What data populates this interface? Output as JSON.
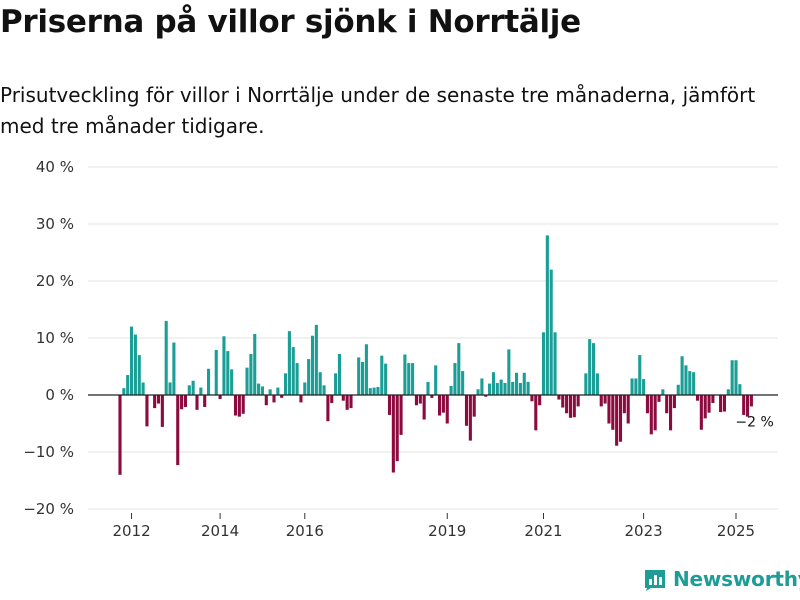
{
  "title": "Priserna på villor sjönk i Norrtälje",
  "subtitle": "Prisutveckling för villor i Norrtälje under de senaste tre månaderna, jämfört med tre månader tidigare.",
  "brand": {
    "name": "Newsworthy",
    "icon": "bar-chart-logo-icon",
    "color": "#1f9c95"
  },
  "chart_data": {
    "type": "bar",
    "title": "Priserna på villor sjönk i Norrtälje",
    "xlabel": "",
    "ylabel": "",
    "ylim": [
      -20,
      40
    ],
    "y_ticks": [
      {
        "value": 40,
        "label": "40 %"
      },
      {
        "value": 30,
        "label": "30 %"
      },
      {
        "value": 20,
        "label": "20 %"
      },
      {
        "value": 10,
        "label": "10 %"
      },
      {
        "value": 0,
        "label": "0 %"
      },
      {
        "value": -10,
        "label": "−10 %"
      },
      {
        "value": -20,
        "label": "−20 %"
      }
    ],
    "x_ticks": [
      {
        "index": 3,
        "label": "2012"
      },
      {
        "index": 26,
        "label": "2014"
      },
      {
        "index": 48,
        "label": "2016"
      },
      {
        "index": 85,
        "label": "2019"
      },
      {
        "index": 110,
        "label": "2021"
      },
      {
        "index": 136,
        "label": "2023"
      },
      {
        "index": 160,
        "label": "2025"
      }
    ],
    "grid": true,
    "positive_color": "#1a9e96",
    "negative_color": "#8c0a3e",
    "last_value_label": "−2 %",
    "values": [
      -14,
      1.2,
      3.5,
      12,
      10.6,
      7,
      2.2,
      -5.5,
      0,
      -2.3,
      -1.5,
      -5.6,
      13,
      2.2,
      9.2,
      -12.3,
      -2.5,
      -2.1,
      1.7,
      2.5,
      -2.6,
      1.3,
      -2.1,
      4.6,
      0,
      7.9,
      -0.7,
      10.3,
      7.7,
      4.5,
      -3.6,
      -3.8,
      -3.3,
      4.8,
      7.2,
      10.7,
      2,
      1.5,
      -1.8,
      1,
      -1.3,
      1.3,
      -0.5,
      3.8,
      11.2,
      8.4,
      5.6,
      -1.3,
      2.2,
      6.3,
      10.4,
      12.3,
      4,
      1.7,
      -4.6,
      -1.4,
      3.8,
      7.2,
      -1,
      -2.6,
      -2.3,
      0,
      6.6,
      5.8,
      8.9,
      1.2,
      1.3,
      1.4,
      6.9,
      5.5,
      -3.5,
      -13.6,
      -11.6,
      -7,
      7.1,
      5.6,
      5.6,
      -1.8,
      -1.5,
      -4.3,
      2.3,
      -0.5,
      5.2,
      -3.6,
      -3.1,
      -5,
      1.6,
      5.6,
      9.1,
      4.2,
      -5.4,
      -8,
      -3.8,
      1,
      2.9,
      -0.3,
      2,
      4,
      2.1,
      2.7,
      2.1,
      8,
      2.3,
      3.9,
      2.1,
      3.9,
      2.3,
      -1.1,
      -6.2,
      -1.8,
      11,
      28,
      22,
      11,
      -0.8,
      -2.2,
      -3.2,
      -4,
      -3.9,
      -2,
      0,
      3.8,
      9.8,
      9.1,
      3.8,
      -2,
      -1.5,
      -5,
      -6.1,
      -8.9,
      -8.2,
      -3.2,
      -5,
      2.9,
      2.9,
      7,
      2.8,
      -3.2,
      -6.9,
      -6.2,
      -1.2,
      1,
      -3.2,
      -6.2,
      -2.3,
      1.8,
      6.8,
      5.2,
      4.2,
      4,
      -1,
      -6.1,
      -4.1,
      -3.1,
      -1.4,
      0,
      -3,
      -2.9,
      1,
      6.1,
      6.1,
      1.9,
      -3.5,
      -3.8,
      -2
    ]
  }
}
